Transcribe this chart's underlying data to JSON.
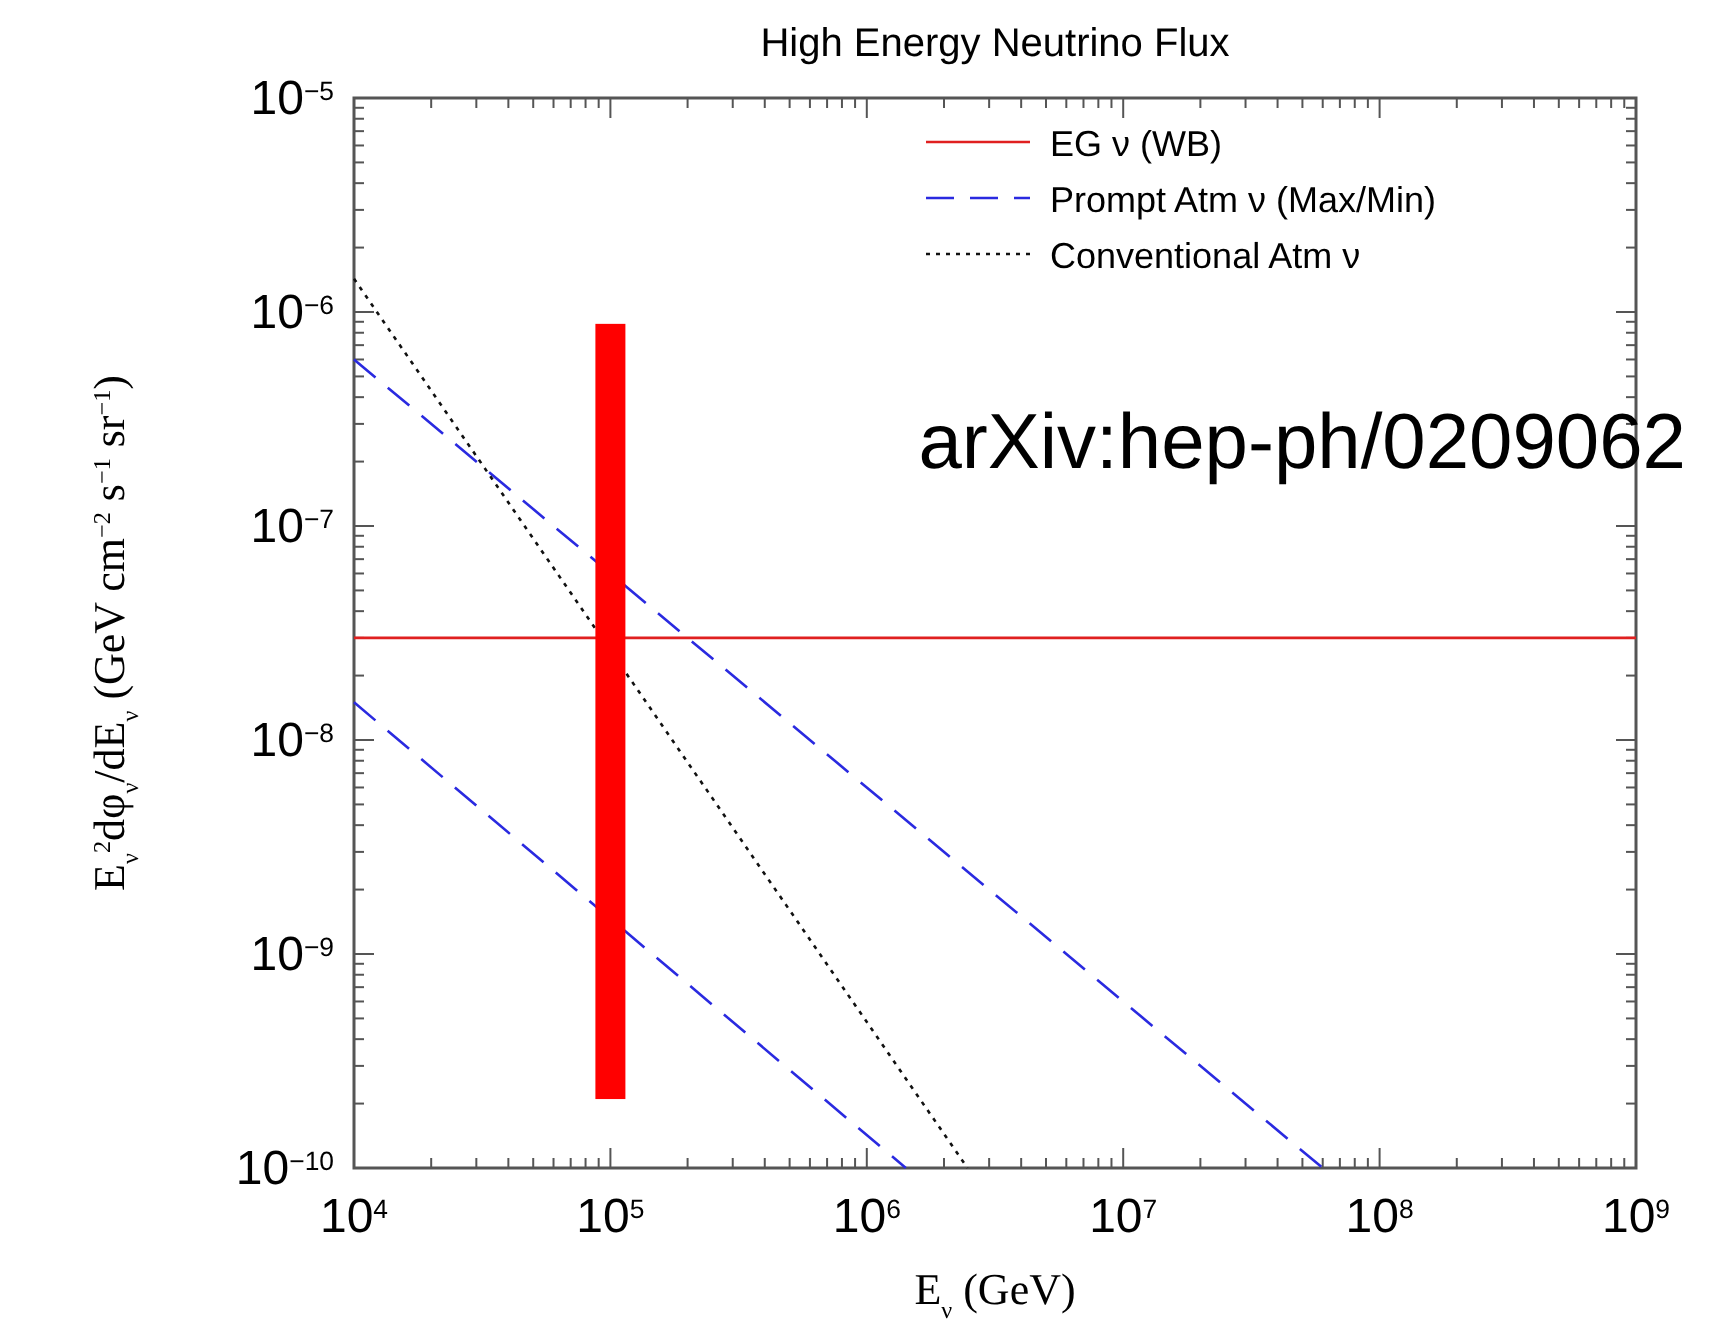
{
  "chart_data": {
    "type": "line",
    "title": "High Energy Neutrino Flux",
    "xlabel": "E$_{ν}$ (GeV)",
    "ylabel": "E$_{ν}$$^{2}$dφ$_{ν}$/dE$_{ν}$ (GeV cm$^{−2}$ s$^{−1}$ sr$^{−1}$)",
    "log": "xy",
    "xlim": [
      10000,
      1000000000
    ],
    "ylim": [
      1e-10,
      1e-05
    ],
    "xticks": [
      {
        "value": 10000,
        "label": "10$^{4}$"
      },
      {
        "value": 100000,
        "label": "10$^{5}$"
      },
      {
        "value": 1000000,
        "label": "10$^{6}$"
      },
      {
        "value": 10000000,
        "label": "10$^{7}$"
      },
      {
        "value": 100000000,
        "label": "10$^{8}$"
      },
      {
        "value": 1000000000,
        "label": "10$^{9}$"
      }
    ],
    "yticks": [
      {
        "value": 1e-10,
        "label": "10$^{−10}$"
      },
      {
        "value": 1e-09,
        "label": "10$^{−9}$"
      },
      {
        "value": 1e-08,
        "label": "10$^{−8}$"
      },
      {
        "value": 1e-07,
        "label": "10$^{−7}$"
      },
      {
        "value": 1e-06,
        "label": "10$^{−6}$"
      },
      {
        "value": 1e-05,
        "label": "10$^{−5}$"
      }
    ],
    "legend": "top right",
    "grid": false,
    "series": [
      {
        "name": "EG ν (WB)",
        "color": "#e02020",
        "line_style": "solid",
        "x": [
          10000,
          1000000000
        ],
        "values": [
          3e-08,
          3e-08
        ]
      },
      {
        "name": "Prompt Atm ν (Max/Min)",
        "color": "#2a2ae0",
        "line_style": "dashed",
        "x": [
          10000,
          60000000
        ],
        "values": [
          6e-07,
          1e-10
        ]
      },
      {
        "color": "#2a2ae0",
        "line_style": "dashed",
        "x": [
          10000,
          1420000
        ],
        "values": [
          1.5e-08,
          1e-10
        ]
      },
      {
        "name": "Conventional Atm ν",
        "color": "#111111",
        "line_style": "dotted",
        "x": [
          10000,
          2470000
        ],
        "values": [
          1.43e-06,
          1e-10
        ]
      },
      {
        "type": "bar",
        "color": "#ff0000",
        "x": [
          100000
        ],
        "base": [
          2.1e-10
        ],
        "values": [
          8.8e-07
        ]
      }
    ],
    "annotations": [
      "arXiv:hep-ph/0209062"
    ]
  }
}
